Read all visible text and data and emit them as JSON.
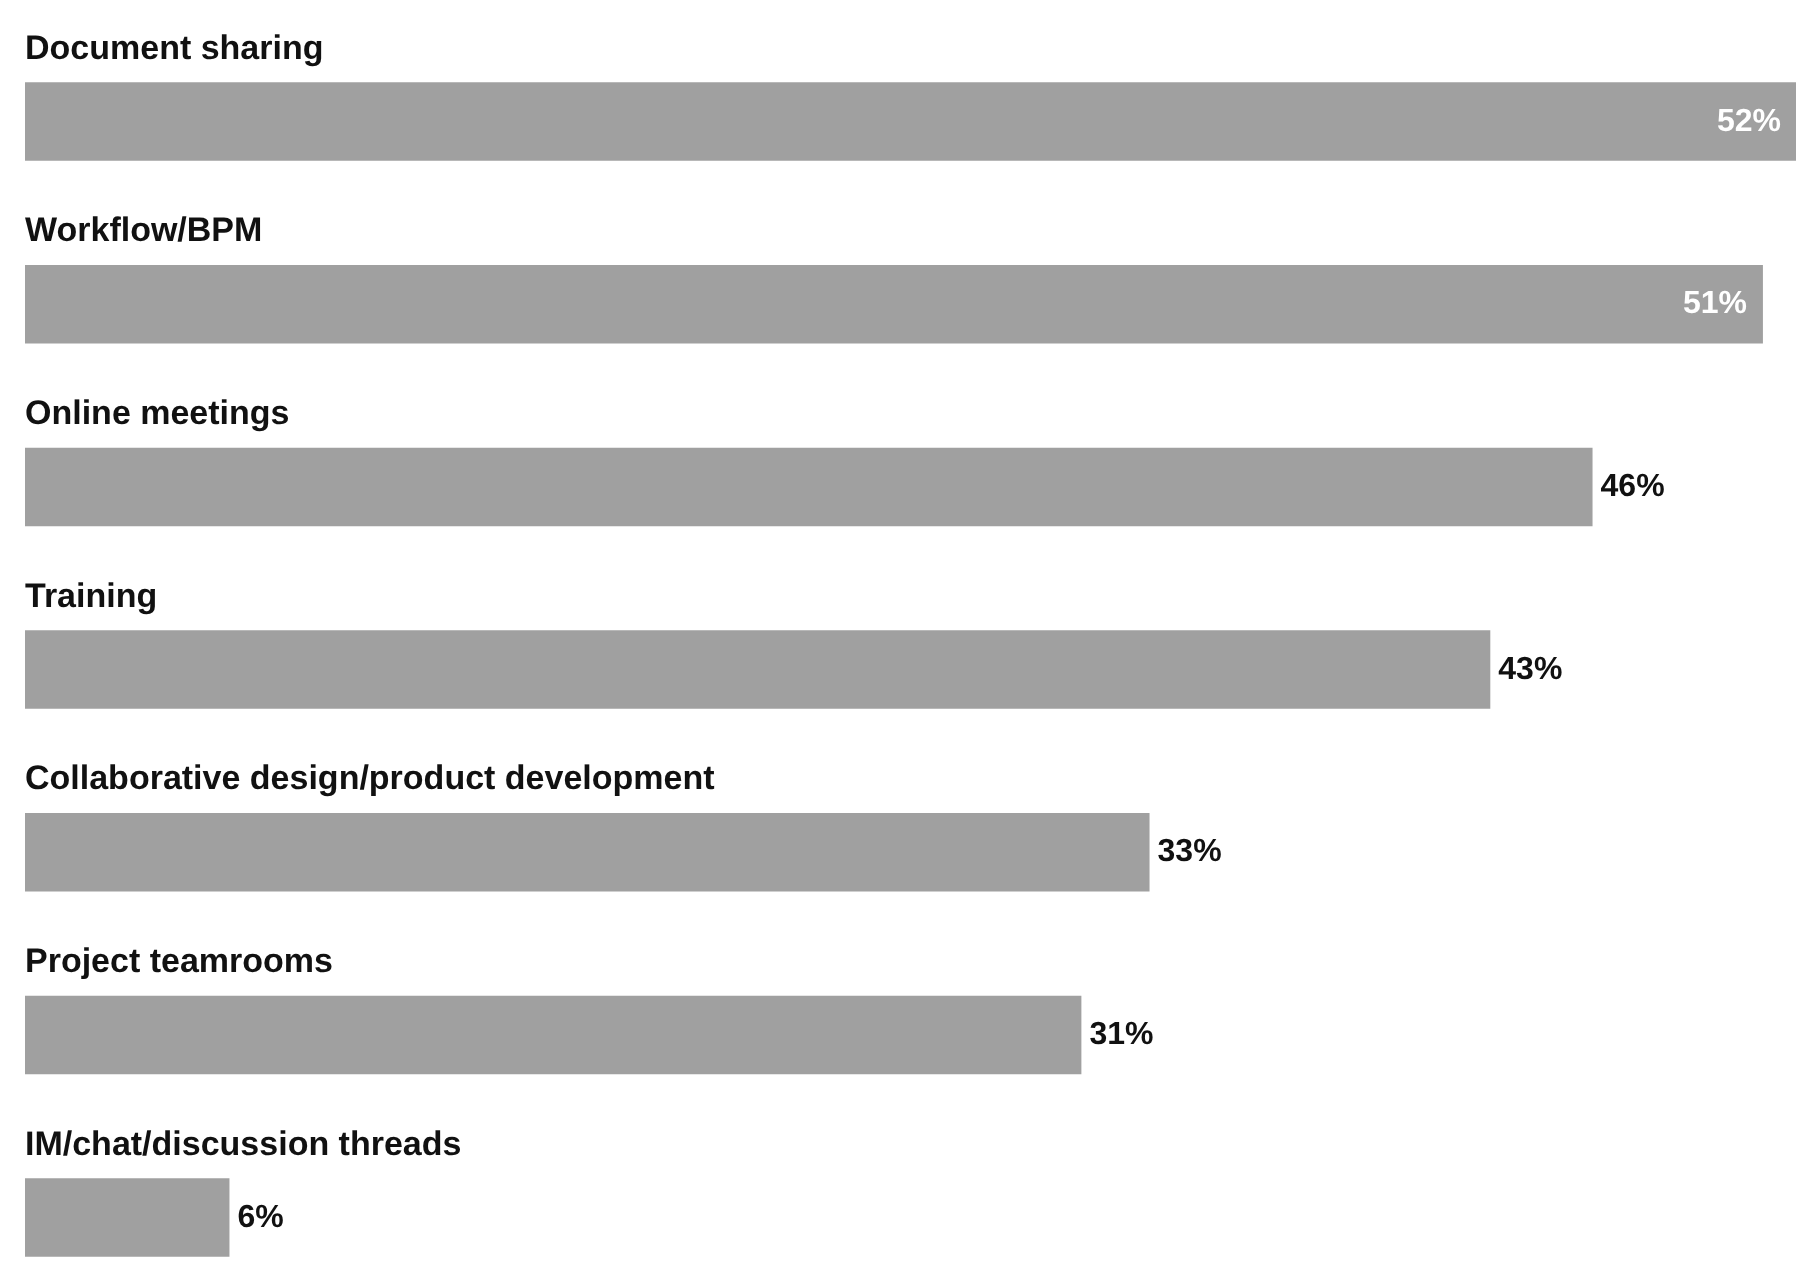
{
  "chart_data": {
    "type": "bar",
    "orientation": "horizontal",
    "categories": [
      "Document sharing",
      "Workflow/BPM",
      "Online meetings",
      "Training",
      "Collaborative design/product development",
      "Project teamrooms",
      "IM/chat/discussion threads"
    ],
    "values": [
      52,
      51,
      46,
      43,
      33,
      31,
      6
    ],
    "value_labels": [
      "52%",
      "51%",
      "46%",
      "43%",
      "33%",
      "31%",
      "6%"
    ],
    "color": "#a0a0a0",
    "grid": false
  }
}
